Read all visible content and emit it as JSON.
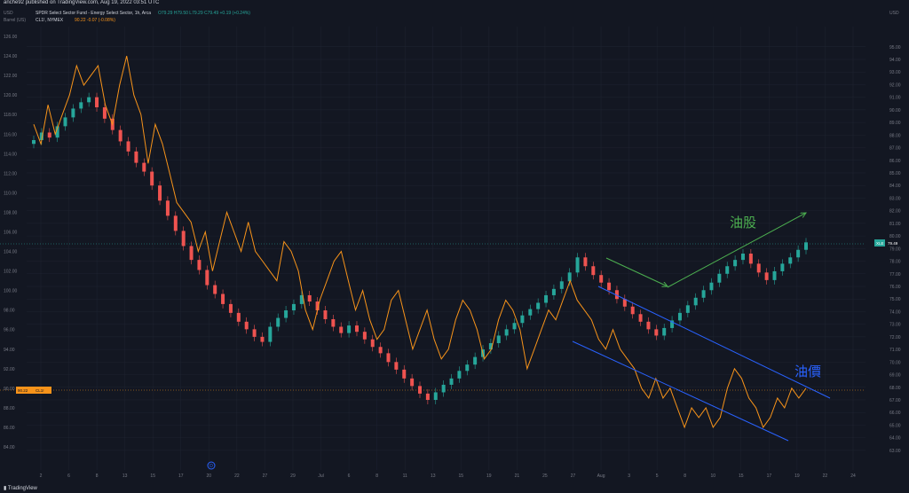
{
  "header": {
    "published": "anche92 published on TradingView.com, Aug 19, 2022 03:51 UTC",
    "left_unit": "USD",
    "left_unit2": "Barrel (US)",
    "right_unit": "USD"
  },
  "legend": {
    "xle_line": "SPDR Select Sector Fund - Energy Select Sector, 1h, Arca",
    "xle_vals": "O79.29  H79.50  L79.29  C79.49  +0.19 (+0.24%)",
    "oil_line": "CL1!, NYMEX",
    "oil_vals": "90.22  -0.07 (-0.08%)"
  },
  "annotations": {
    "stock_label": "油股",
    "oil_label": "油價"
  },
  "colors": {
    "background": "#131722",
    "grid": "#1f2431",
    "up": "#26a69a",
    "down": "#ef5350",
    "oil": "#f7931a",
    "channel": "#2962ff",
    "stock_arrow": "#4caf50",
    "text": "#787b86"
  },
  "footer": {
    "logo": "TradingView"
  },
  "chart_data": {
    "type": "candlestick+line",
    "left_axis": {
      "label": "Barrel (US)",
      "ticks": [
        "126.00",
        "124.00",
        "122.00",
        "120.00",
        "118.00",
        "116.00",
        "114.00",
        "112.00",
        "110.00",
        "108.00",
        "106.00",
        "104.00",
        "102.00",
        "100.00",
        "98.00",
        "96.00",
        "94.00",
        "92.00",
        "90.00",
        "88.00",
        "86.00",
        "84.00"
      ],
      "range": [
        83,
        127
      ]
    },
    "right_axis": {
      "ticks": [
        "95.00",
        "94.00",
        "93.00",
        "92.00",
        "91.00",
        "90.00",
        "89.00",
        "88.00",
        "87.00",
        "86.00",
        "85.00",
        "84.00",
        "83.00",
        "82.00",
        "81.00",
        "80.00",
        "79.00",
        "78.00",
        "77.00",
        "76.00",
        "75.00",
        "74.00",
        "73.00",
        "72.00",
        "71.00",
        "70.00",
        "69.00",
        "68.00",
        "67.00",
        "66.00",
        "65.00",
        "64.00",
        "63.00"
      ],
      "range": [
        62.5,
        96.6
      ]
    },
    "x_ticks": [
      "2",
      "6",
      "8",
      "13",
      "15",
      "17",
      "20",
      "22",
      "27",
      "29",
      "Jul",
      "6",
      "8",
      "11",
      "13",
      "15",
      "19",
      "21",
      "25",
      "27",
      "Aug",
      "3",
      "5",
      "8",
      "10",
      "15",
      "17",
      "19",
      "22",
      "24"
    ],
    "price_tags": {
      "xle": {
        "label": "XLE",
        "value": "79.49",
        "right_value": 79.49,
        "color": "#26a69a"
      },
      "oil": {
        "label": "CL1!",
        "value": "90.22",
        "left_value": 90.22,
        "color": "#f7931a"
      }
    },
    "oil_series": {
      "name": "CL1!",
      "values": [
        117,
        115,
        119,
        116,
        118,
        120,
        123,
        121,
        122,
        123,
        119,
        117,
        121,
        124,
        120,
        118,
        113,
        117,
        115,
        112,
        109,
        108,
        107,
        104,
        106,
        102,
        105,
        108,
        106,
        104,
        107,
        104,
        103,
        102,
        101,
        105,
        104,
        102,
        98,
        96,
        99,
        101,
        103,
        104,
        101,
        98,
        100,
        97,
        95,
        96,
        99,
        100,
        97,
        94,
        96,
        98,
        95,
        93,
        94,
        97,
        99,
        98,
        96,
        93,
        94,
        97,
        99,
        98,
        96,
        92,
        94,
        96,
        98,
        97,
        99,
        101,
        99,
        98,
        97,
        95,
        94,
        96,
        94,
        93,
        92,
        90,
        89,
        91,
        89,
        90,
        88,
        86,
        88,
        87,
        88,
        86,
        87,
        90,
        92,
        91,
        89,
        88,
        86,
        87,
        89,
        88,
        90,
        89,
        90
      ]
    },
    "xle_series": {
      "name": "XLE",
      "values": [
        87.6,
        88.2,
        87.8,
        88.7,
        89.4,
        90.1,
        90.6,
        91.0,
        90.2,
        89.3,
        88.4,
        87.5,
        86.7,
        85.8,
        85.1,
        84.0,
        82.8,
        81.6,
        80.4,
        79.2,
        78.1,
        77.3,
        76.1,
        75.4,
        74.6,
        73.9,
        73.2,
        72.6,
        72.0,
        71.6,
        72.8,
        73.5,
        74.1,
        74.6,
        75.3,
        74.8,
        74.1,
        73.4,
        72.8,
        72.3,
        72.9,
        72.4,
        71.8,
        71.2,
        70.7,
        70.0,
        69.4,
        68.7,
        68.1,
        67.5,
        67.0,
        67.6,
        68.2,
        68.7,
        69.3,
        69.8,
        70.4,
        71.0,
        71.5,
        72.1,
        72.6,
        73.1,
        73.7,
        74.2,
        74.7,
        75.3,
        75.8,
        76.4,
        77.1,
        78.3,
        77.6,
        76.9,
        76.3,
        75.7,
        75.0,
        74.4,
        73.8,
        73.2,
        72.6,
        72.1,
        72.7,
        73.3,
        73.9,
        74.5,
        75.1,
        75.7,
        76.3,
        77.0,
        77.6,
        78.1,
        78.6,
        77.8,
        77.1,
        76.5,
        77.2,
        77.8,
        78.3,
        78.9,
        79.49
      ]
    },
    "channel_lines": {
      "upper": [
        [
          674,
          323
        ],
        [
          935,
          449
        ]
      ],
      "lower": [
        [
          645,
          385
        ],
        [
          888,
          497
        ]
      ]
    },
    "arrows": {
      "down": [
        [
          683,
          291
        ],
        [
          752,
          323
        ]
      ],
      "up": [
        [
          752,
          324
        ],
        [
          908,
          240
        ]
      ]
    },
    "grid": true,
    "legend_position": "top-left"
  }
}
